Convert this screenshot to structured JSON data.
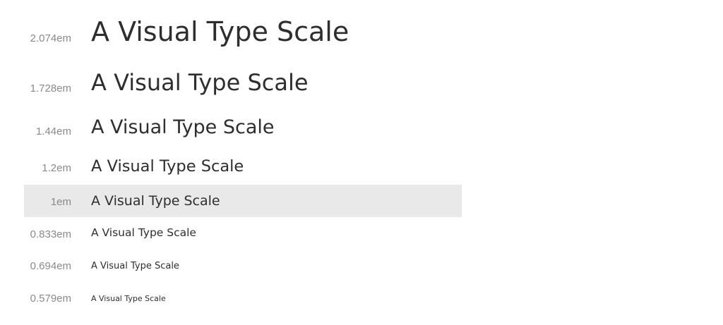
{
  "sample_text": "A Visual Type Scale",
  "rows": [
    {
      "size_label": "2.074em",
      "highlighted": false
    },
    {
      "size_label": "1.728em",
      "highlighted": false
    },
    {
      "size_label": "1.44em",
      "highlighted": false
    },
    {
      "size_label": "1.2em",
      "highlighted": false
    },
    {
      "size_label": "1em",
      "highlighted": true
    },
    {
      "size_label": "0.833em",
      "highlighted": false
    },
    {
      "size_label": "0.694em",
      "highlighted": false
    },
    {
      "size_label": "0.579em",
      "highlighted": false
    }
  ],
  "colors": {
    "label": "#8a8a8a",
    "sample": "#2e2e2e",
    "highlight": "#e9e9e9"
  }
}
